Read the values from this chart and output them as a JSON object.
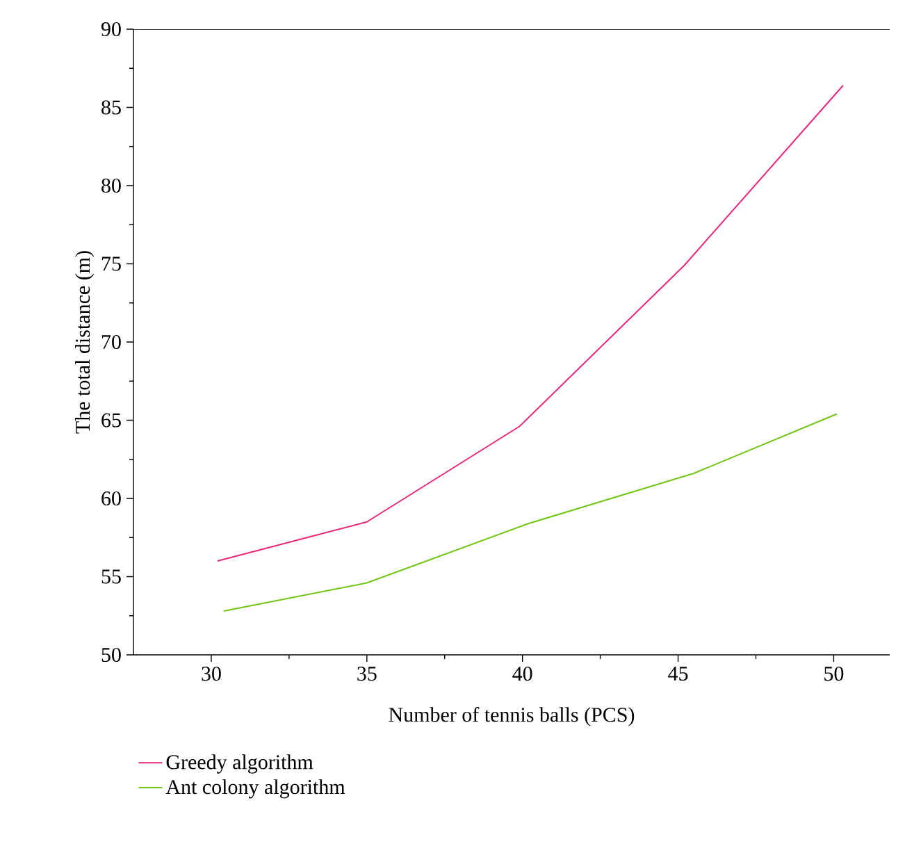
{
  "chart_data": {
    "type": "line",
    "xlabel": "Number of tennis balls (PCS)",
    "ylabel": "The total distance (m)",
    "xlim": [
      27.5,
      51.8
    ],
    "xticks": [
      30,
      35,
      40,
      45,
      50
    ],
    "ylim": [
      50,
      90
    ],
    "yticks": [
      50,
      55,
      60,
      65,
      70,
      75,
      80,
      85,
      90
    ],
    "legend": "bottom",
    "grid": false,
    "marker": "none",
    "line_style": "solid",
    "series": [
      {
        "name": "Greedy algorithm",
        "color": "#e8257a",
        "x": [
          30.2,
          35.0,
          39.9,
          45.2,
          50.3
        ],
        "values": [
          56.0,
          58.5,
          64.6,
          74.9,
          86.4
        ]
      },
      {
        "name": "Ant colony algorithm",
        "color": "#72c415",
        "x": [
          30.4,
          35.0,
          40.2,
          45.5,
          50.1
        ],
        "values": [
          52.8,
          54.6,
          58.4,
          61.6,
          65.4
        ]
      }
    ]
  }
}
